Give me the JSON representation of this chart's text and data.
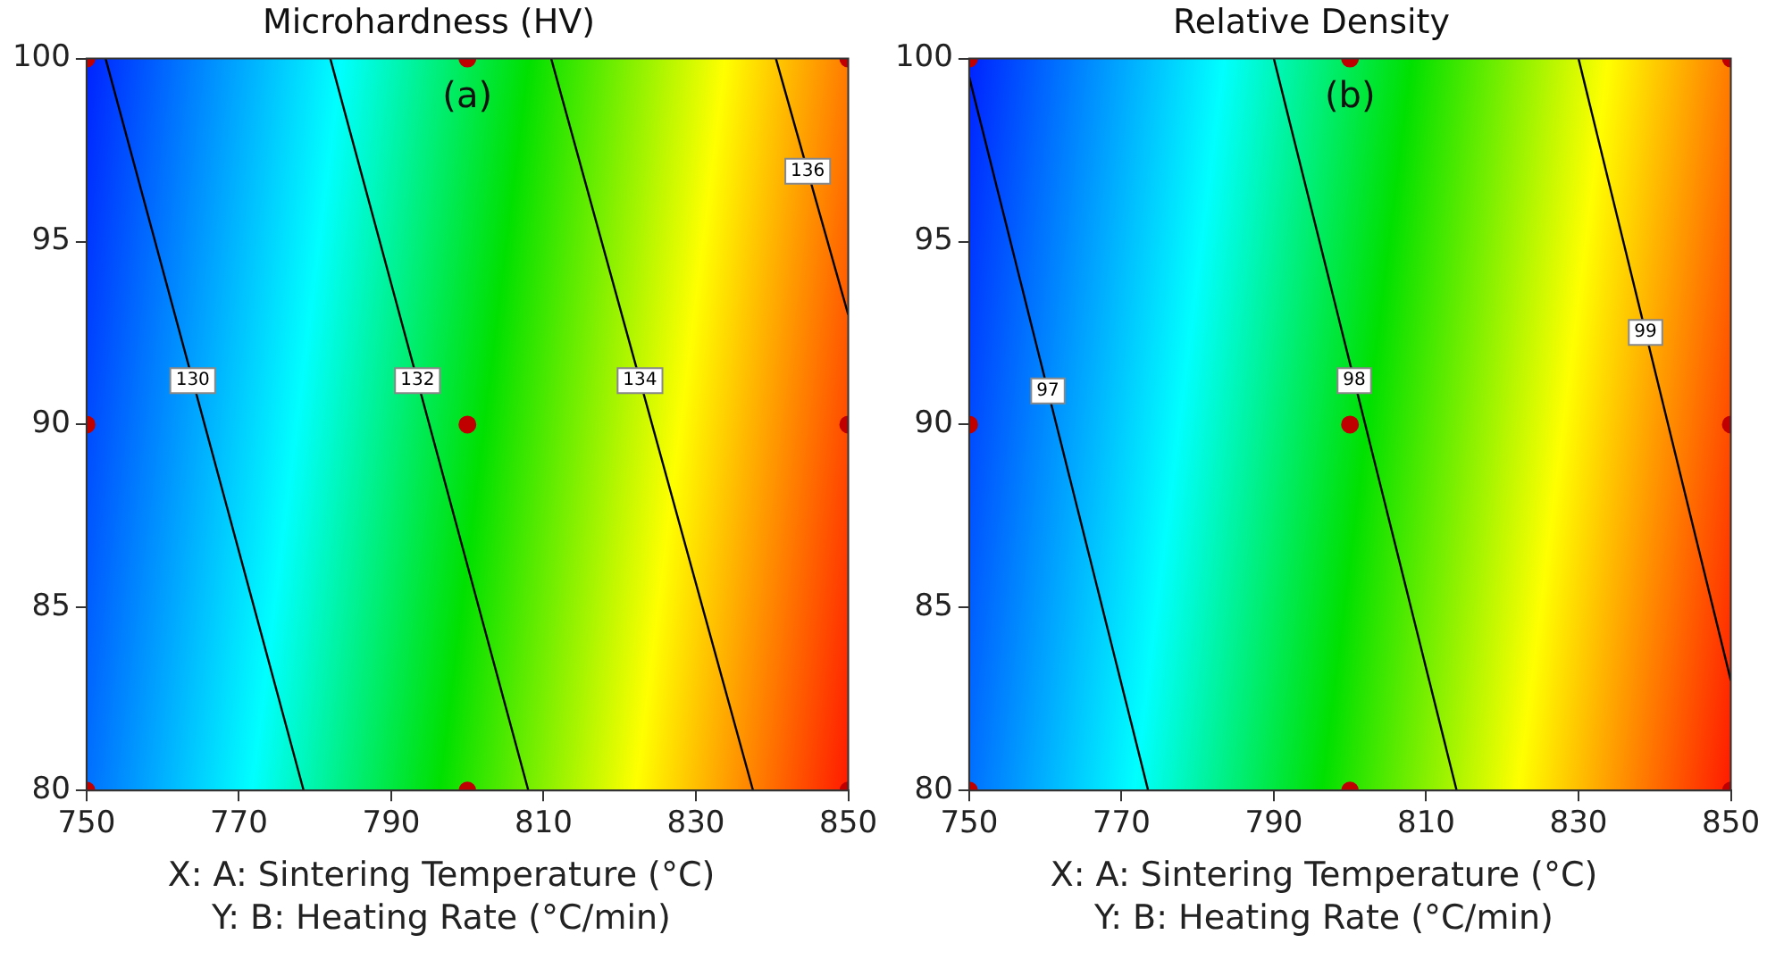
{
  "chart_data": [
    {
      "type": "line",
      "title": "Microhardness (HV)",
      "xlabel": "X: A: Sintering Temperature (°C)\nY: B: Heating Rate (°C/min)",
      "annotations": [
        "(a)"
      ],
      "xlim": [
        750,
        850
      ],
      "xticks": [
        750,
        770,
        790,
        810,
        830,
        850
      ],
      "ylim": [
        80,
        100
      ],
      "yticks": [
        80,
        85,
        90,
        95,
        100
      ],
      "grid": false,
      "legend": false,
      "marker": "none",
      "series": [
        {
          "name": "130",
          "color": "#000000",
          "x": [
            752.5,
            778.5
          ],
          "values": [
            100,
            80
          ]
        },
        {
          "name": "132",
          "color": "#000000",
          "x": [
            782,
            808
          ],
          "values": [
            100,
            80
          ]
        },
        {
          "name": "134",
          "color": "#000000",
          "x": [
            811,
            837.5
          ],
          "values": [
            100,
            80
          ]
        },
        {
          "name": "136",
          "color": "#000000",
          "x": [
            840.5,
            850
          ],
          "values": [
            100,
            93
          ]
        },
        {
          "type": "scatter",
          "marker": "circle",
          "color": "#c00000",
          "x": [
            750,
            750,
            750,
            800,
            800,
            800,
            850,
            850,
            850
          ],
          "values": [
            80,
            90,
            100,
            80,
            90,
            100,
            80,
            90,
            100
          ]
        }
      ]
    },
    {
      "type": "line",
      "title": "Relative Density",
      "xlabel": "X: A: Sintering Temperature (°C)\nY: B: Heating Rate (°C/min)",
      "annotations": [
        "(b)"
      ],
      "xlim": [
        750,
        850
      ],
      "xticks": [
        750,
        770,
        790,
        810,
        830,
        850
      ],
      "ylim": [
        80,
        100
      ],
      "yticks": [
        80,
        85,
        90,
        95,
        100
      ],
      "grid": false,
      "legend": false,
      "marker": "none",
      "series": [
        {
          "name": "97",
          "color": "#000000",
          "x": [
            750,
            773.5
          ],
          "values": [
            99.5,
            80
          ]
        },
        {
          "name": "98",
          "color": "#000000",
          "x": [
            790,
            814
          ],
          "values": [
            100,
            80
          ]
        },
        {
          "name": "99",
          "color": "#000000",
          "x": [
            830,
            850
          ],
          "values": [
            100,
            83
          ]
        },
        {
          "type": "scatter",
          "marker": "circle",
          "color": "#c00000",
          "x": [
            750,
            750,
            750,
            800,
            800,
            800,
            850,
            850,
            850
          ],
          "values": [
            80,
            90,
            100,
            80,
            90,
            100,
            80,
            90,
            100
          ]
        }
      ]
    }
  ]
}
